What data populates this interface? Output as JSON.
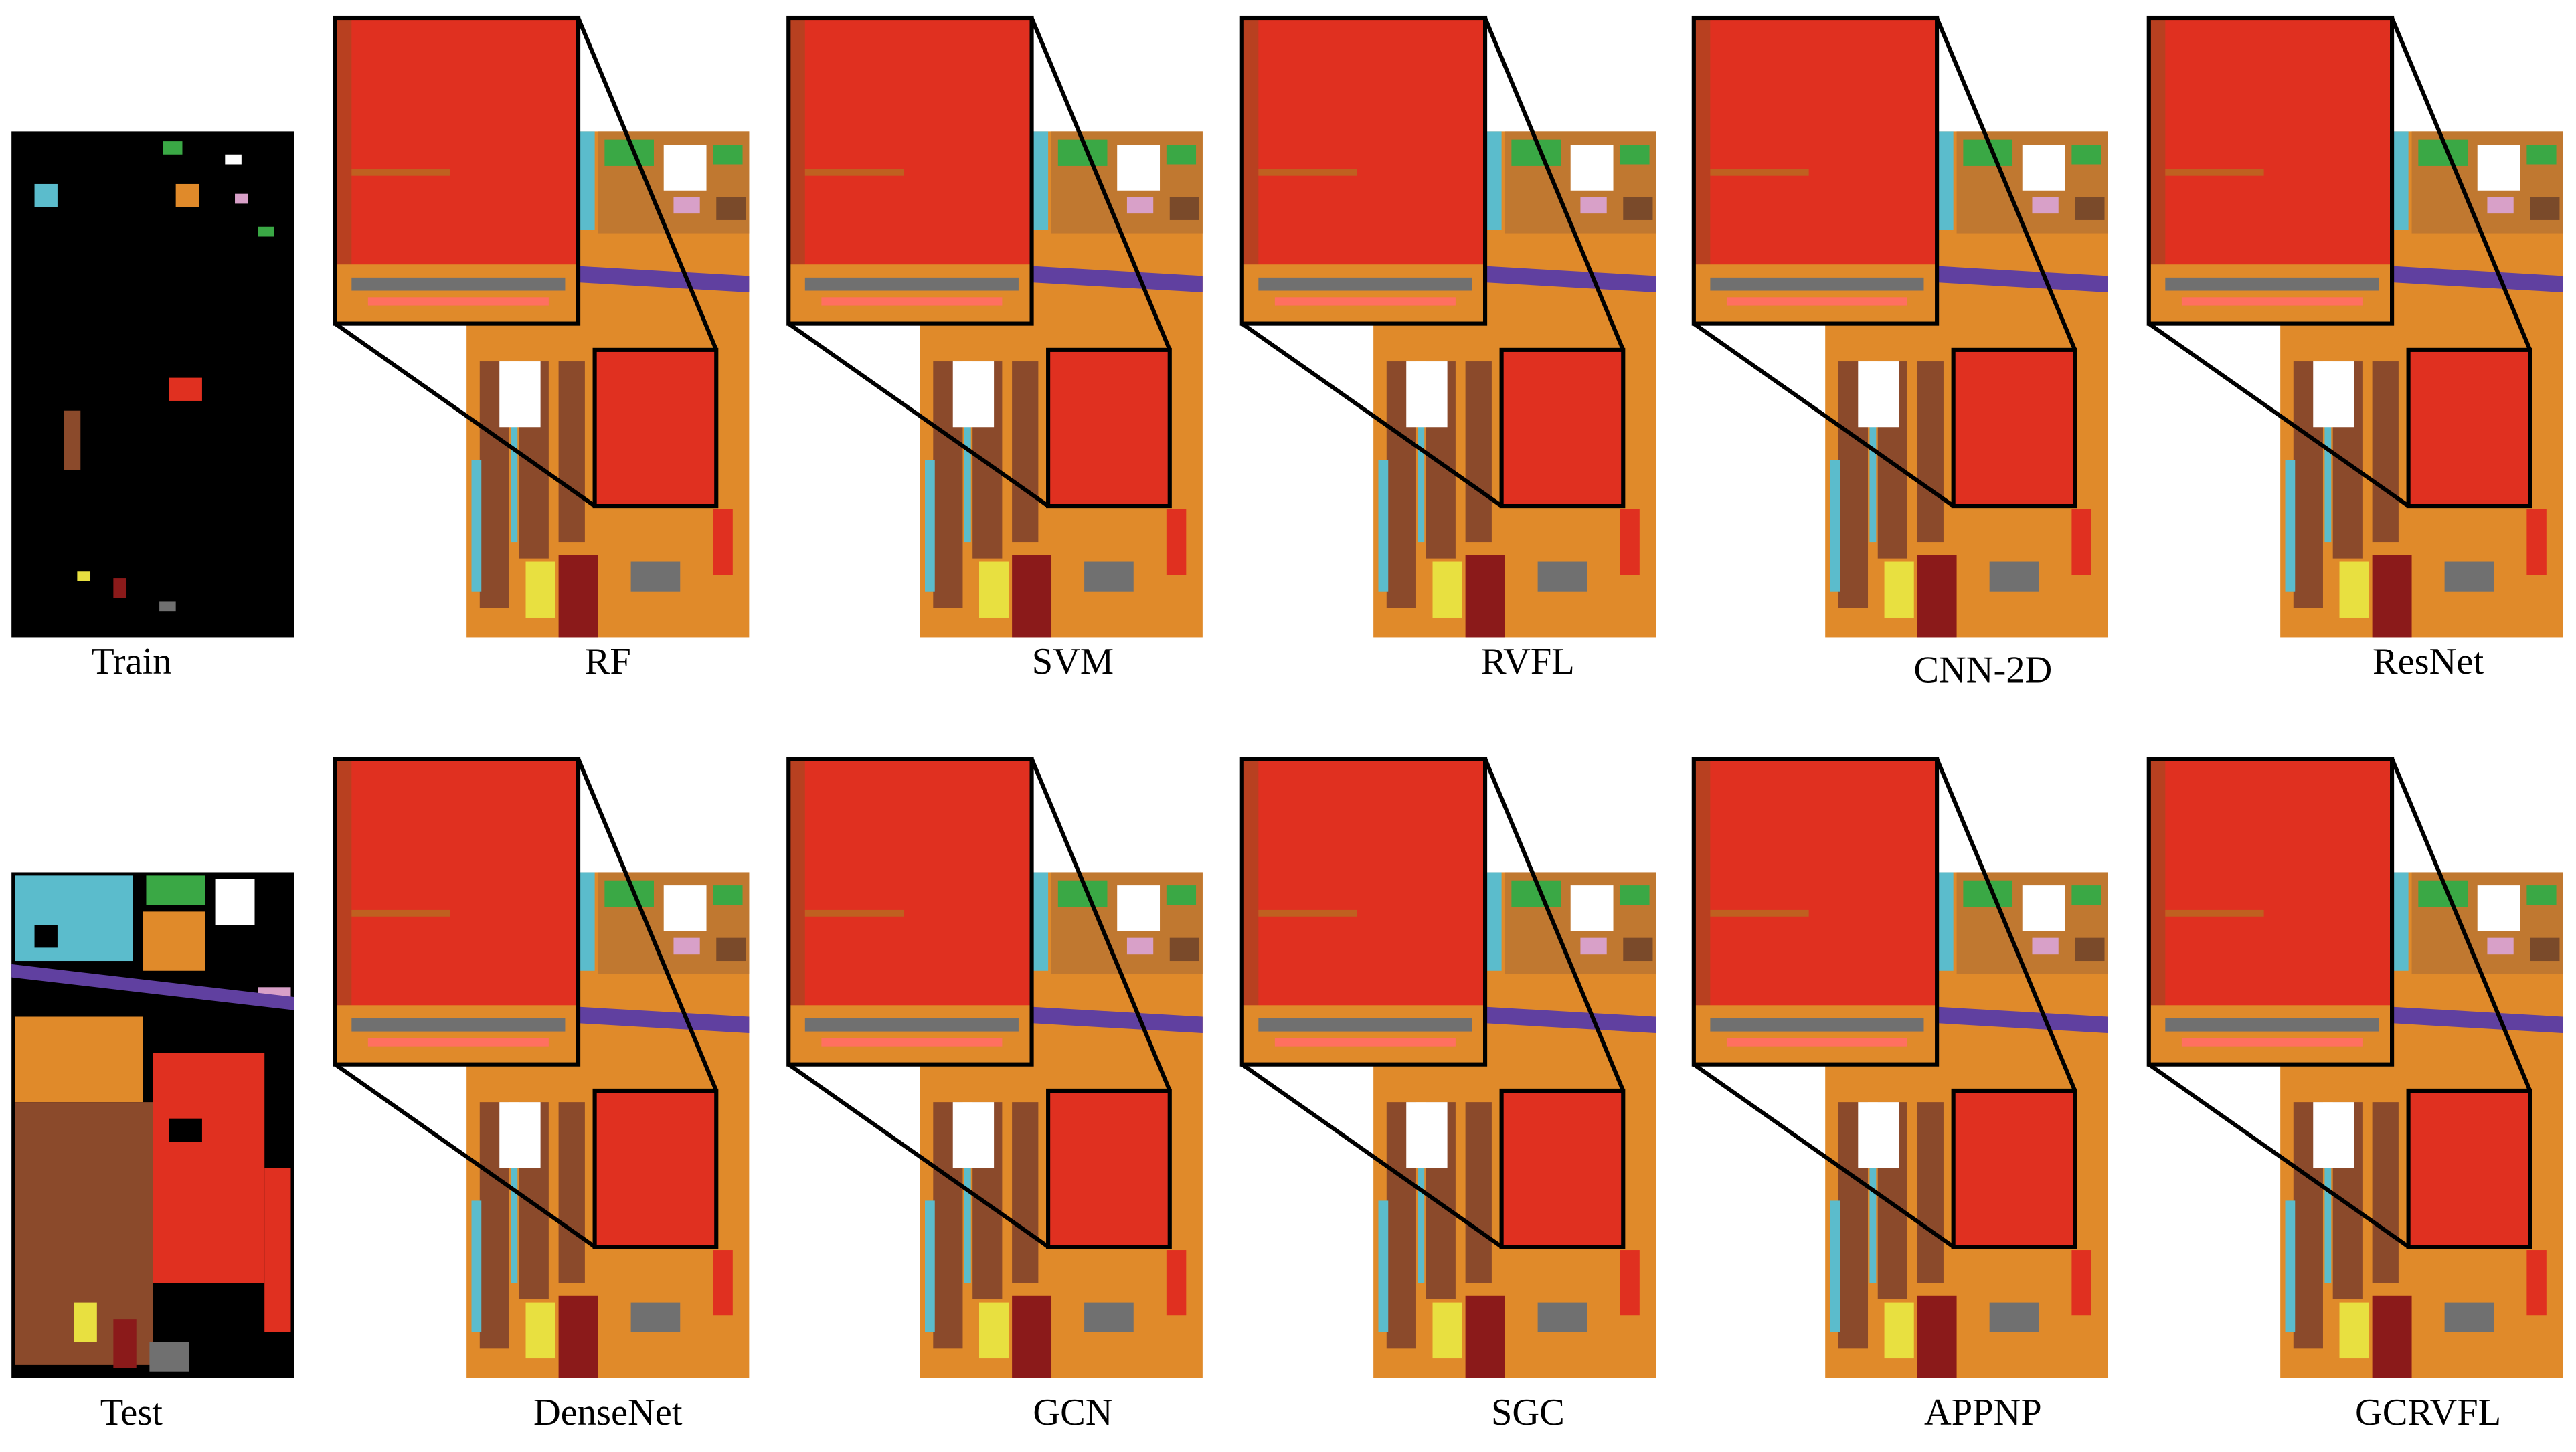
{
  "panels": [
    {
      "label": "Train"
    },
    {
      "label": "RF"
    },
    {
      "label": "SVM"
    },
    {
      "label": "RVFL"
    },
    {
      "label": "CNN-2D"
    },
    {
      "label": "ResNet"
    },
    {
      "label": "Test"
    },
    {
      "label": "DenseNet"
    },
    {
      "label": "GCN"
    },
    {
      "label": "SGC"
    },
    {
      "label": "APPNP"
    },
    {
      "label": "GCRVFL"
    }
  ]
}
